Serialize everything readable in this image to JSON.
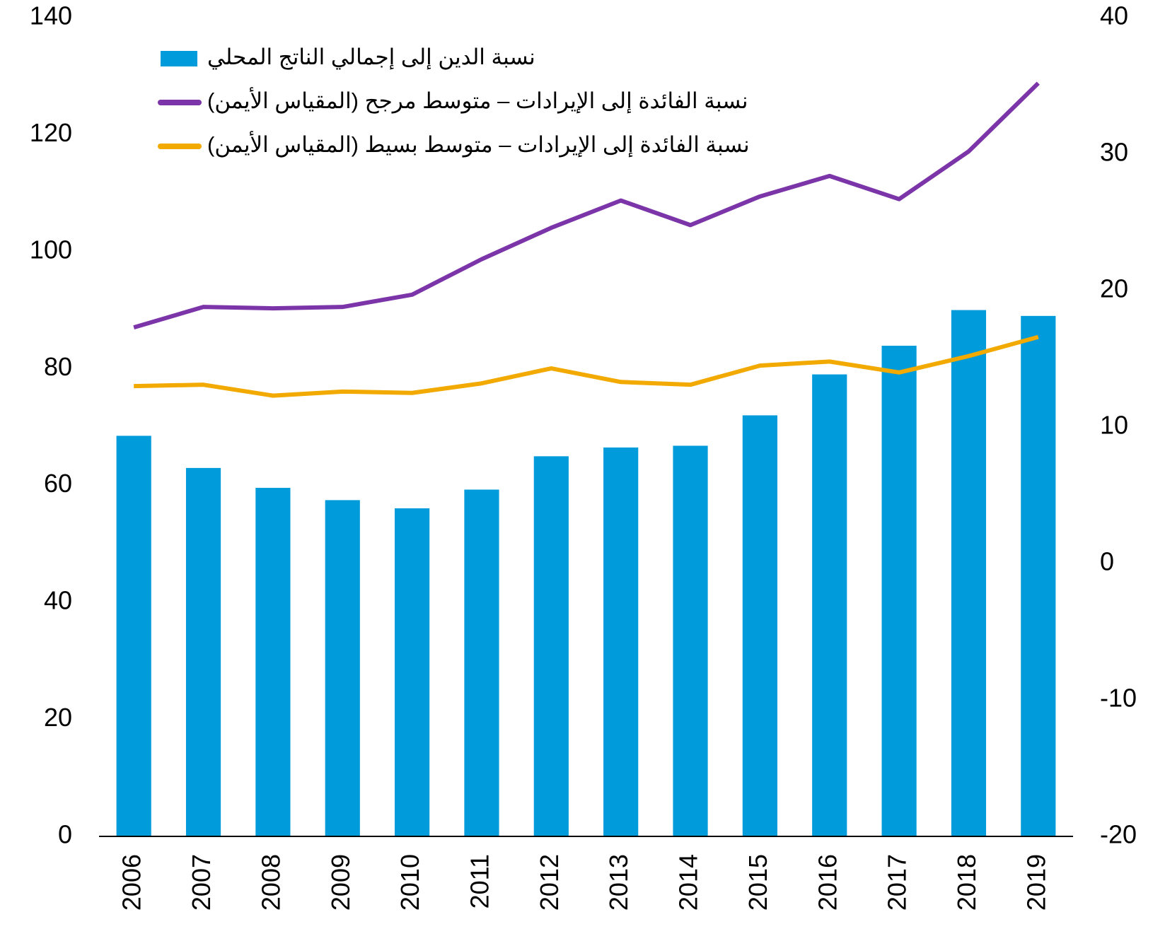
{
  "chart_data": {
    "type": "bar",
    "categories": [
      "2006",
      "2007",
      "2008",
      "2009",
      "2010",
      "2011",
      "2012",
      "2013",
      "2014",
      "2015",
      "2016",
      "2017",
      "2018",
      "2019"
    ],
    "series": [
      {
        "name": "نسبة الدين إلى إجمالي الناتج المحلي",
        "type": "bar",
        "color": "#009bdb",
        "values": [
          68.5,
          63,
          59.6,
          57.5,
          56.1,
          59.3,
          65,
          66.5,
          66.8,
          72,
          79,
          83.9,
          90,
          89
        ]
      },
      {
        "name": "نسبة الفائدة إلى الإيرادات – متوسط مرجح (المقياس الأيمن)",
        "type": "line",
        "axis": "y2",
        "color": "#7b35a8",
        "values": [
          17.3,
          18.8,
          18.7,
          18.8,
          19.7,
          22.3,
          24.6,
          26.6,
          24.8,
          26.9,
          28.4,
          26.7,
          30.2,
          35.2
        ]
      },
      {
        "name": "نسبة الفائدة إلى الإيرادات – متوسط بسيط (المقياس الأيمن)",
        "type": "line",
        "axis": "y2",
        "color": "#f2a900",
        "values": [
          13.0,
          13.1,
          12.3,
          12.6,
          12.5,
          13.2,
          14.3,
          13.3,
          13.1,
          14.5,
          14.8,
          14.0,
          15.2,
          16.6
        ]
      }
    ],
    "ylim": [
      0,
      140
    ],
    "yticks": [
      0,
      20,
      40,
      60,
      80,
      100,
      120,
      140
    ],
    "y2lim": [
      -20,
      40
    ],
    "y2ticks": [
      -20,
      -10,
      0,
      10,
      20,
      30,
      40
    ],
    "legend": "top-left"
  }
}
